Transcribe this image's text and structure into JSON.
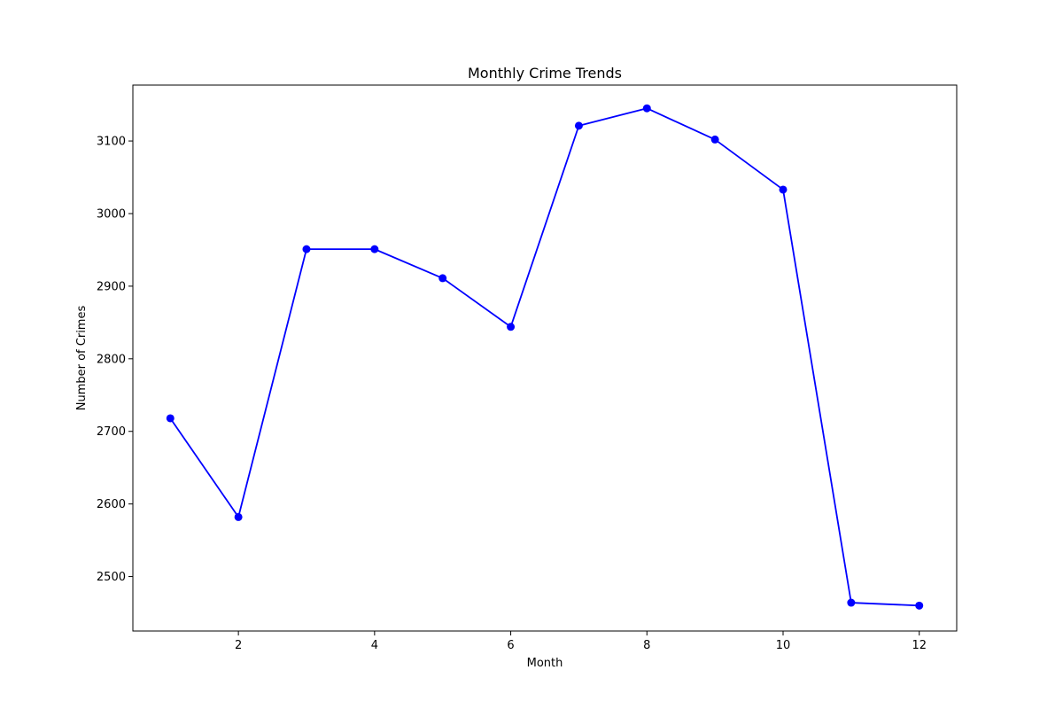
{
  "chart_data": {
    "type": "line",
    "title": "Monthly Crime Trends",
    "xlabel": "Month",
    "ylabel": "Number of Crimes",
    "x": [
      1,
      2,
      3,
      4,
      5,
      6,
      7,
      8,
      9,
      10,
      11,
      12
    ],
    "series": [
      {
        "values": [
          2718,
          2582,
          2951,
          2951,
          2911,
          2844,
          3121,
          3145,
          3102,
          3033,
          2464,
          2460
        ],
        "color": "#0000ff",
        "marker": "circle"
      }
    ],
    "xlim": [
      0.45,
      12.55
    ],
    "ylim": [
      2425,
      3177
    ],
    "xticks": [
      2,
      4,
      6,
      8,
      10,
      12
    ],
    "yticks": [
      2500,
      2600,
      2700,
      2800,
      2900,
      3000,
      3100
    ],
    "grid": false,
    "legend": "none"
  }
}
